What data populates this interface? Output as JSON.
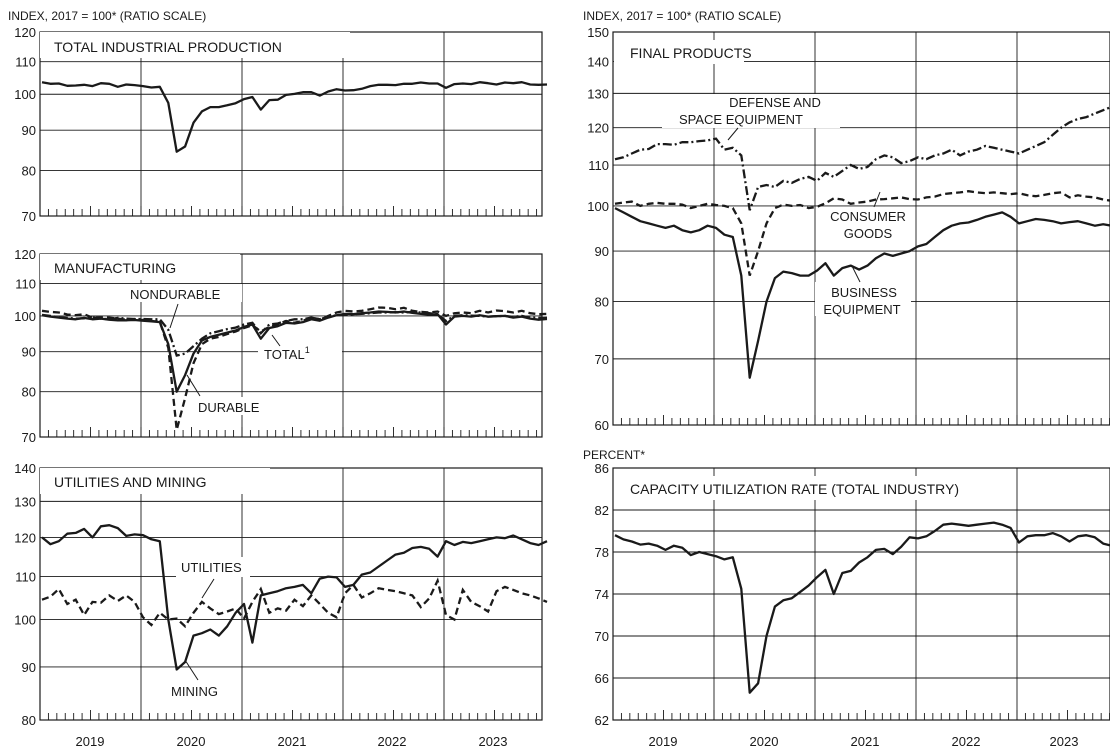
{
  "chart_data": [
    {
      "id": "tip",
      "type": "line",
      "top_label": "INDEX, 2017 = 100* (RATIO SCALE)",
      "title": "TOTAL INDUSTRIAL PRODUCTION",
      "scale": "log",
      "ylim": [
        70,
        120
      ],
      "yticks": [
        70,
        80,
        90,
        100,
        110,
        120
      ],
      "grid": true,
      "series": [
        {
          "style": "solid",
          "values": [
            103.6,
            103.1,
            103.2,
            102.5,
            102.6,
            102.8,
            102.4,
            103.3,
            103.1,
            102.2,
            102.9,
            102.7,
            102.4,
            102.0,
            102.2,
            97.5,
            84.5,
            85.8,
            92.0,
            95.1,
            96.3,
            96.3,
            96.8,
            97.4,
            98.6,
            99.2,
            95.6,
            98.3,
            98.4,
            99.8,
            100.1,
            100.6,
            100.6,
            99.6,
            100.8,
            101.5,
            101.1,
            101.2,
            101.6,
            102.4,
            102.8,
            102.8,
            102.7,
            103.1,
            103.1,
            103.5,
            103.2,
            103.2,
            101.9,
            103.0,
            103.2,
            103.0,
            103.6,
            103.3,
            102.9,
            103.5,
            103.3,
            103.6,
            102.9,
            102.8,
            102.9
          ]
        }
      ]
    },
    {
      "id": "mfg",
      "type": "line",
      "title": "MANUFACTURING",
      "scale": "log",
      "ylim": [
        70,
        120
      ],
      "yticks": [
        70,
        80,
        90,
        100,
        110,
        120
      ],
      "grid": true,
      "series": [
        {
          "name": "NONDURABLE",
          "style": "dashdot",
          "values": [
            100.3,
            100.0,
            99.6,
            99.4,
            99.2,
            99.3,
            99.6,
            99.2,
            99.0,
            99.4,
            99.2,
            99.1,
            99.1,
            99.0,
            99.0,
            96.0,
            89.0,
            89.5,
            91.5,
            93.5,
            95.0,
            95.6,
            96.2,
            96.6,
            97.5,
            98.0,
            95.0,
            97.5,
            97.8,
            98.5,
            99.0,
            99.0,
            99.5,
            99.0,
            99.8,
            100.2,
            100.3,
            100.5,
            100.6,
            100.8,
            101.0,
            101.0,
            101.1,
            101.0,
            101.2,
            101.0,
            100.8,
            100.5,
            98.5,
            100.0,
            100.2,
            100.1,
            100.0,
            99.8,
            99.9,
            100.0,
            99.7,
            100.0,
            99.5,
            99.4,
            99.5
          ]
        },
        {
          "name": "DURABLE",
          "style": "dash",
          "values": [
            101.5,
            101.2,
            101.0,
            100.4,
            100.2,
            100.5,
            99.5,
            99.6,
            99.5,
            99.2,
            98.9,
            99.1,
            98.8,
            98.5,
            98.3,
            91.0,
            71.5,
            78.5,
            87.0,
            92.0,
            93.5,
            94.0,
            94.8,
            95.5,
            96.5,
            97.3,
            95.5,
            96.8,
            97.5,
            98.5,
            98.0,
            98.6,
            99.5,
            99.0,
            100.0,
            101.0,
            101.5,
            101.3,
            101.5,
            102.0,
            102.5,
            102.4,
            102.0,
            102.4,
            101.5,
            101.2,
            101.0,
            101.3,
            100.0,
            100.8,
            101.0,
            100.8,
            101.5,
            101.0,
            101.6,
            101.4,
            101.0,
            101.5,
            100.8,
            100.5,
            100.6
          ]
        },
        {
          "name": "TOTAL",
          "style": "solid",
          "values": [
            100.2,
            99.8,
            99.5,
            99.2,
            99.0,
            99.4,
            99.0,
            99.2,
            98.9,
            98.7,
            98.7,
            98.8,
            98.6,
            98.4,
            98.2,
            92.0,
            80.0,
            84.0,
            89.5,
            93.0,
            94.0,
            94.6,
            95.2,
            95.8,
            96.8,
            97.5,
            93.5,
            96.5,
            97.0,
            98.0,
            97.8,
            98.2,
            99.0,
            98.6,
            99.5,
            100.2,
            100.6,
            100.5,
            100.8,
            101.0,
            101.3,
            101.2,
            101.0,
            101.3,
            100.9,
            100.6,
            100.4,
            100.5,
            97.5,
            99.8,
            100.0,
            99.8,
            100.2,
            99.8,
            99.9,
            100.0,
            99.5,
            99.8,
            99.2,
            98.9,
            99.1
          ]
        }
      ]
    },
    {
      "id": "util",
      "type": "line",
      "title": "UTILITIES AND MINING",
      "scale": "log",
      "ylim": [
        80,
        140
      ],
      "yticks": [
        80,
        90,
        100,
        110,
        120,
        130,
        140
      ],
      "grid": true,
      "series": [
        {
          "name": "UTILITIES",
          "style": "dash",
          "values": [
            104.5,
            105.2,
            107.0,
            103.5,
            104.5,
            101.0,
            104.0,
            103.8,
            105.5,
            104.2,
            105.5,
            104.0,
            100.5,
            98.8,
            101.5,
            100.0,
            100.2,
            98.5,
            101.5,
            104.0,
            102.5,
            101.2,
            101.8,
            102.5,
            100.2,
            104.0,
            107.0,
            101.5,
            102.5,
            102.0,
            104.5,
            103.0,
            105.5,
            103.5,
            101.5,
            100.5,
            106.0,
            108.0,
            105.0,
            106.0,
            107.2,
            106.8,
            106.5,
            106.0,
            105.5,
            102.8,
            104.8,
            109.0,
            101.0,
            100.0,
            106.8,
            104.0,
            103.0,
            101.8,
            106.5,
            107.5,
            106.8,
            106.0,
            105.5,
            104.8,
            104.0
          ]
        },
        {
          "name": "MINING",
          "style": "solid",
          "values": [
            120.0,
            118.2,
            119.0,
            121.0,
            121.2,
            122.3,
            120.0,
            123.0,
            123.3,
            122.5,
            120.4,
            120.8,
            120.6,
            119.5,
            119.0,
            100.0,
            89.5,
            91.0,
            96.5,
            97.0,
            97.8,
            96.5,
            98.5,
            101.5,
            103.5,
            95.0,
            105.5,
            106.0,
            106.5,
            107.2,
            107.5,
            108.0,
            106.0,
            109.5,
            110.0,
            109.8,
            107.5,
            108.0,
            110.5,
            111.0,
            112.5,
            114.0,
            115.5,
            116.0,
            117.2,
            117.5,
            117.0,
            115.0,
            119.0,
            118.0,
            118.8,
            118.5,
            119.0,
            119.5,
            120.0,
            119.8,
            120.5,
            119.5,
            118.5,
            118.0,
            119.0
          ]
        }
      ]
    },
    {
      "id": "final",
      "type": "line",
      "top_label": "INDEX, 2017 = 100* (RATIO SCALE)",
      "title": "FINAL PRODUCTS",
      "scale": "log",
      "ylim": [
        60,
        150
      ],
      "yticks": [
        60,
        70,
        80,
        90,
        100,
        110,
        120,
        130,
        140,
        150
      ],
      "grid": true,
      "series": [
        {
          "name": "DEFENSE AND SPACE EQUIPMENT",
          "style": "dashdot",
          "values": [
            111.5,
            112.0,
            113.0,
            114.0,
            114.2,
            115.5,
            115.5,
            115.3,
            116.0,
            116.0,
            116.3,
            116.5,
            117.0,
            114.0,
            114.5,
            112.5,
            99.0,
            104.5,
            105.0,
            104.5,
            106.0,
            105.5,
            106.5,
            107.0,
            106.0,
            108.0,
            107.0,
            108.5,
            110.0,
            109.0,
            109.5,
            111.5,
            112.5,
            112.0,
            110.5,
            111.0,
            112.0,
            111.5,
            112.5,
            113.0,
            114.0,
            112.5,
            113.5,
            114.0,
            115.0,
            114.5,
            114.0,
            113.5,
            113.0,
            114.0,
            115.0,
            116.0,
            118.0,
            120.0,
            121.5,
            122.5,
            123.0,
            124.0,
            125.0,
            126.0,
            127.0
          ]
        },
        {
          "name": "CONSUMER GOODS",
          "style": "dash",
          "values": [
            100.5,
            100.8,
            101.0,
            100.0,
            100.5,
            100.7,
            100.5,
            100.5,
            100.3,
            99.5,
            100.0,
            100.5,
            100.2,
            100.0,
            99.5,
            96.0,
            85.0,
            90.0,
            96.0,
            99.5,
            100.3,
            100.0,
            100.2,
            99.5,
            99.8,
            100.6,
            101.8,
            101.5,
            100.5,
            100.8,
            101.0,
            101.5,
            101.6,
            101.8,
            102.0,
            101.6,
            101.5,
            102.0,
            102.2,
            102.8,
            103.0,
            103.2,
            103.5,
            103.2,
            103.0,
            103.2,
            103.0,
            102.8,
            103.0,
            102.5,
            102.3,
            102.6,
            103.0,
            103.2,
            102.0,
            102.5,
            102.2,
            102.0,
            101.5,
            101.2,
            101.3
          ]
        },
        {
          "name": "BUSINESS EQUIPMENT",
          "style": "solid",
          "values": [
            99.5,
            98.5,
            97.5,
            96.5,
            96.0,
            95.5,
            95.0,
            95.5,
            94.5,
            94.0,
            94.5,
            95.5,
            95.0,
            93.5,
            93.0,
            85.0,
            67.0,
            73.0,
            80.0,
            84.5,
            85.8,
            85.5,
            85.0,
            85.0,
            86.0,
            87.5,
            85.0,
            86.5,
            87.0,
            86.2,
            87.0,
            88.5,
            89.5,
            89.0,
            89.5,
            90.0,
            91.0,
            91.5,
            93.0,
            94.5,
            95.5,
            96.0,
            96.2,
            96.8,
            97.5,
            98.0,
            98.5,
            97.5,
            96.0,
            96.5,
            97.0,
            96.8,
            96.5,
            96.0,
            96.3,
            96.5,
            96.0,
            95.5,
            95.8,
            95.5,
            95.8
          ]
        }
      ]
    },
    {
      "id": "cap",
      "type": "line",
      "top_label": "PERCENT*",
      "title": "CAPACITY UTILIZATION RATE (TOTAL INDUSTRY)",
      "scale": "linear",
      "ylim": [
        62,
        86
      ],
      "yticks": [
        62,
        66,
        70,
        74,
        78,
        82,
        86
      ],
      "grid_extra": [
        80
      ],
      "grid": true,
      "series": [
        {
          "style": "solid",
          "values": [
            79.6,
            79.2,
            79.0,
            78.7,
            78.8,
            78.6,
            78.2,
            78.6,
            78.4,
            77.7,
            78.0,
            77.8,
            77.6,
            77.3,
            77.5,
            74.5,
            64.6,
            65.5,
            70.0,
            72.8,
            73.4,
            73.6,
            74.2,
            74.8,
            75.6,
            76.3,
            74.0,
            76.0,
            76.2,
            77.0,
            77.5,
            78.2,
            78.3,
            77.8,
            78.5,
            79.4,
            79.3,
            79.5,
            80.0,
            80.6,
            80.7,
            80.6,
            80.5,
            80.6,
            80.7,
            80.8,
            80.6,
            80.3,
            78.9,
            79.5,
            79.6,
            79.6,
            79.8,
            79.5,
            79.0,
            79.5,
            79.6,
            79.4,
            78.8,
            78.6,
            78.7
          ]
        }
      ]
    }
  ],
  "x_axis": {
    "years": [
      "2019",
      "2020",
      "2021",
      "2022",
      "2023"
    ]
  },
  "annotations": {
    "nondurable": "NONDURABLE",
    "total": "TOTAL",
    "total_sup": "1",
    "durable": "DURABLE",
    "utilities": "UTILITIES",
    "mining": "MINING",
    "defense_l1": "DEFENSE AND",
    "defense_l2": "SPACE EQUIPMENT",
    "consumer_l1": "CONSUMER",
    "consumer_l2": "GOODS",
    "business_l1": "BUSINESS",
    "business_l2": "EQUIPMENT"
  }
}
